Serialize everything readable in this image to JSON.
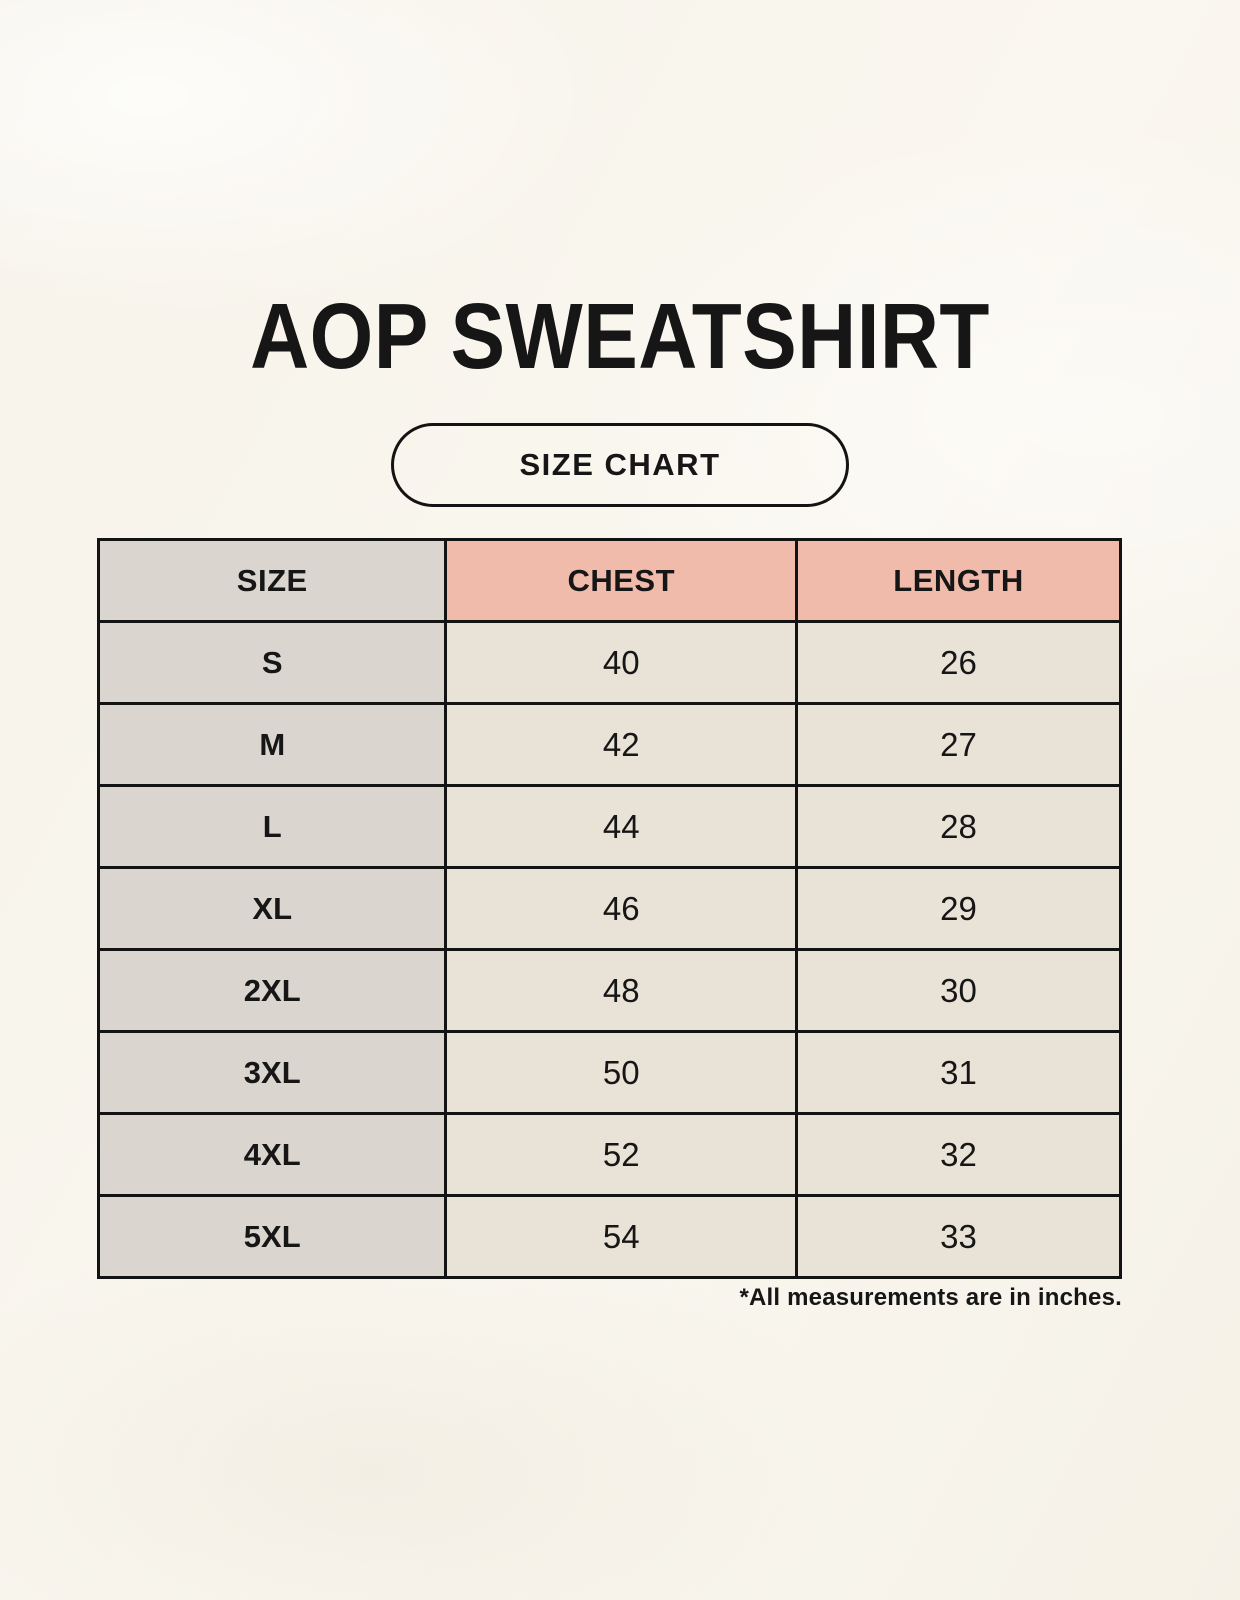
{
  "page": {
    "title": "AOP SWEATSHIRT",
    "badge_label": "SIZE CHART",
    "footnote": "*All measurements are in inches."
  },
  "colors": {
    "background": "#f8f5ee",
    "header_accent": "#f0bbaa",
    "label_gray": "#dbd5cf",
    "cell_cream": "#e9e2d6",
    "border": "#131313",
    "text": "#161616"
  },
  "chart_data": {
    "type": "table",
    "title": "AOP SWEATSHIRT",
    "subtitle": "SIZE CHART",
    "columns": [
      "SIZE",
      "CHEST",
      "LENGTH"
    ],
    "rows": [
      [
        "S",
        40,
        26
      ],
      [
        "M",
        42,
        27
      ],
      [
        "L",
        44,
        28
      ],
      [
        "XL",
        46,
        29
      ],
      [
        "2XL",
        48,
        30
      ],
      [
        "3XL",
        50,
        31
      ],
      [
        "4XL",
        52,
        32
      ],
      [
        "5XL",
        54,
        33
      ]
    ],
    "note": "*All measurements are in inches."
  }
}
